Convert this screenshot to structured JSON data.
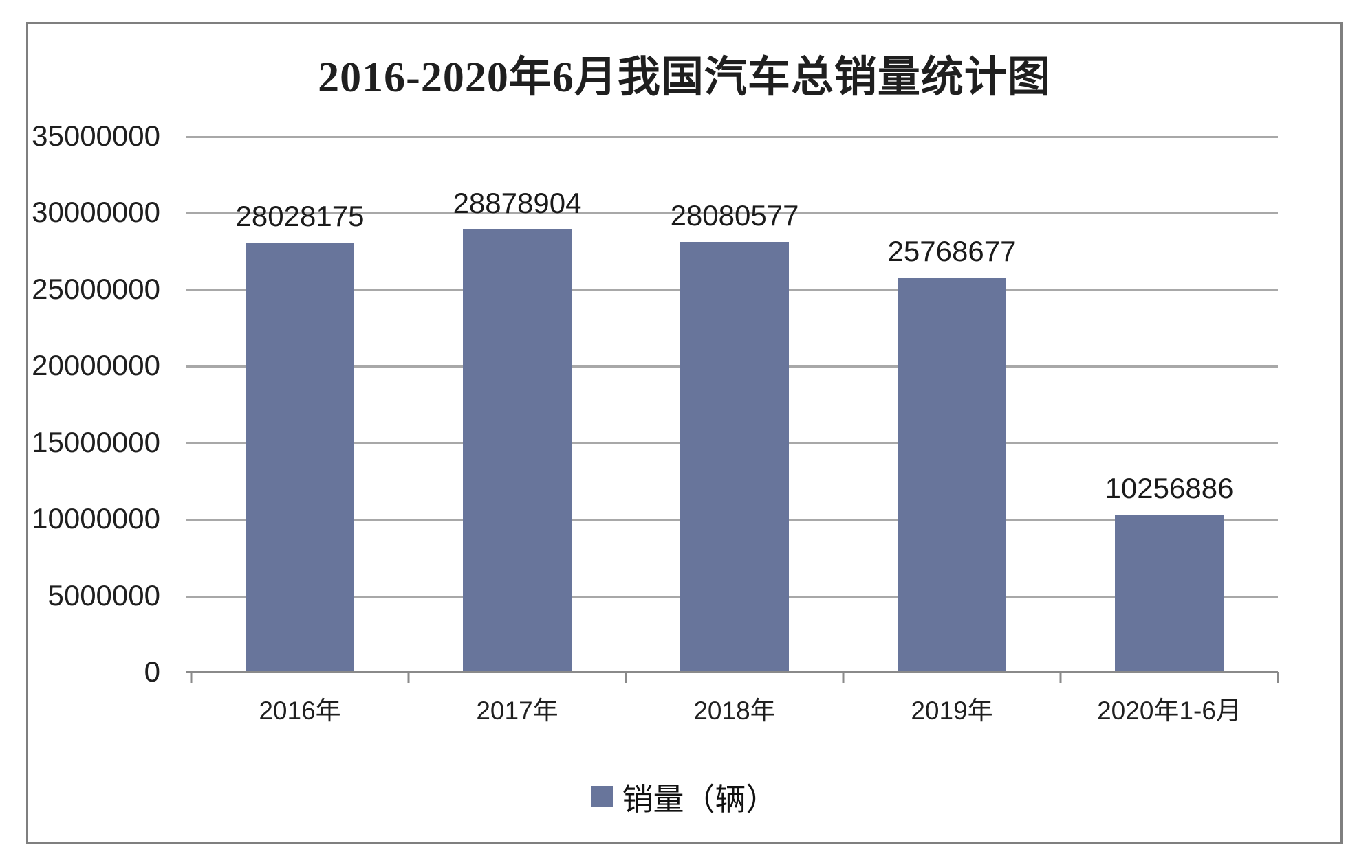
{
  "chart_data": {
    "type": "bar",
    "title": "2016-2020年6月我国汽车总销量统计图",
    "categories": [
      "2016年",
      "2017年",
      "2018年",
      "2019年",
      "2020年1-6月"
    ],
    "values": [
      28028175,
      28878904,
      28080577,
      25768677,
      10256886
    ],
    "series": [
      {
        "name": "销量（辆）",
        "values": [
          28028175,
          28878904,
          28080577,
          25768677,
          10256886
        ]
      }
    ],
    "legend_label": "销量（辆）",
    "legend_position": "bottom",
    "xlabel": "",
    "ylabel": "",
    "ylim": [
      0,
      35000000
    ],
    "ytick_step": 5000000,
    "ytick_labels": [
      "35000000",
      "30000000",
      "25000000",
      "20000000",
      "15000000",
      "10000000",
      "5000000",
      "0"
    ],
    "grid": "horizontal"
  },
  "colors": {
    "bar": "#68759b",
    "gridline": "#a8a8a8",
    "axis": "#8a8a8a",
    "frame_border": "#7f7f7f",
    "text": "#1a1a1a",
    "background": "#ffffff"
  }
}
